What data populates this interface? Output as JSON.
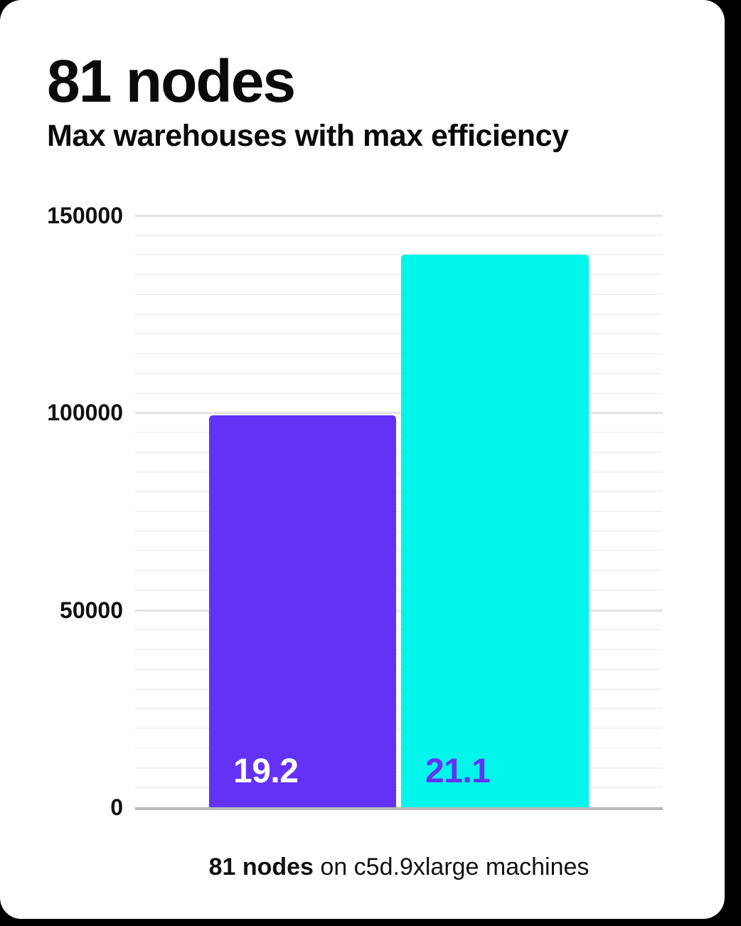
{
  "page": {
    "background_color": "#000000",
    "card_color": "#ffffff"
  },
  "header": {
    "title": "81 nodes",
    "subtitle": "Max warehouses with max efficiency"
  },
  "chart_data": {
    "type": "bar",
    "title": "81 nodes",
    "subtitle": "Max warehouses with max efficiency",
    "categories": [
      "",
      ""
    ],
    "bars": [
      {
        "value_label": "19.2",
        "value": 99400,
        "color": "#6432f7",
        "label_color": "#ffffff"
      },
      {
        "value_label": "21.1",
        "value": 140000,
        "color": "#00f6ea",
        "label_color": "#6432f7"
      }
    ],
    "xlabel": "",
    "ylabel": "",
    "ylim": [
      0,
      150000
    ],
    "ytick_values": [
      150000,
      100000,
      50000,
      0
    ],
    "ytick_labels": [
      "150000",
      "100000",
      "50000",
      "0"
    ],
    "minor_grid_step": 5000,
    "grid": "horizontal-only",
    "legend": "none",
    "major_grid_color": "#e4e4e4",
    "minor_grid_color": "#f1f1f1",
    "axis_line_color": "#b9b9b9"
  },
  "footer": {
    "caption_bold": "81 nodes",
    "caption_rest": " on c5d.9xlarge machines"
  }
}
